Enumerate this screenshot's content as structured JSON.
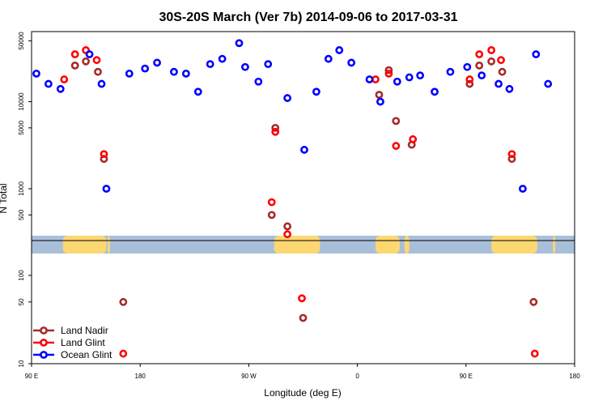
{
  "chart_data": {
    "type": "scatter",
    "title": "30S-20S March (Ver 7b)   2014-09-06 to 2017-03-31",
    "xlabel": "Longitude (deg E)",
    "ylabel": "N Total",
    "xlim": [
      90,
      540
    ],
    "yscale": "log",
    "upper_ylim": [
      200,
      70000
    ],
    "lower_ylim": [
      9,
      150
    ],
    "x_ticks": [
      {
        "value": 90,
        "label": "90 E"
      },
      {
        "value": 180,
        "label": "180"
      },
      {
        "value": 270,
        "label": "90 W"
      },
      {
        "value": 360,
        "label": "0"
      },
      {
        "value": 450,
        "label": "90 E"
      },
      {
        "value": 540,
        "label": "180"
      }
    ],
    "upper_y_ticks": [
      {
        "value": 500,
        "label": "500"
      },
      {
        "value": 1000,
        "label": "1000"
      },
      {
        "value": 5000,
        "label": "5000"
      },
      {
        "value": 10000,
        "label": "10000"
      },
      {
        "value": 50000,
        "label": "50000"
      }
    ],
    "lower_y_ticks": [
      {
        "value": 10,
        "label": "10"
      },
      {
        "value": 50,
        "label": "50"
      },
      {
        "value": 100,
        "label": "100"
      }
    ],
    "map_strip": {
      "ocean_color": "#a8bfd9",
      "land_color": "#fdd872",
      "line_color": "#000000",
      "land_segments": [
        [
          116,
          152
        ],
        [
          153,
          155
        ],
        [
          291,
          329
        ],
        [
          375,
          395
        ],
        [
          399,
          403
        ],
        [
          471,
          509
        ],
        [
          522,
          524
        ]
      ]
    },
    "series": [
      {
        "name": "Land Nadir",
        "color": "#a52a2a",
        "points": [
          [
            126,
            26000
          ],
          [
            135,
            29000
          ],
          [
            145,
            22000
          ],
          [
            150,
            2200
          ],
          [
            166,
            50
          ],
          [
            289,
            500
          ],
          [
            292,
            5000
          ],
          [
            302,
            370
          ],
          [
            315,
            33
          ],
          [
            378,
            12000
          ],
          [
            386,
            23000
          ],
          [
            392,
            6000
          ],
          [
            405,
            3200
          ],
          [
            453,
            16000
          ],
          [
            461,
            26000
          ],
          [
            471,
            29000
          ],
          [
            480,
            22000
          ],
          [
            488,
            2200
          ],
          [
            506,
            50
          ]
        ]
      },
      {
        "name": "Land Glint",
        "color": "#ff0000",
        "points": [
          [
            117,
            18000
          ],
          [
            126,
            35000
          ],
          [
            135,
            39000
          ],
          [
            144,
            30000
          ],
          [
            150,
            2500
          ],
          [
            166,
            13
          ],
          [
            289,
            700
          ],
          [
            292,
            4500
          ],
          [
            302,
            300
          ],
          [
            314,
            55
          ],
          [
            375,
            18000
          ],
          [
            386,
            21000
          ],
          [
            392,
            3100
          ],
          [
            406,
            3700
          ],
          [
            453,
            18000
          ],
          [
            461,
            35000
          ],
          [
            471,
            39000
          ],
          [
            479,
            30000
          ],
          [
            488,
            2500
          ],
          [
            507,
            13
          ]
        ]
      },
      {
        "name": "Ocean Glint",
        "color": "#0000ff",
        "points": [
          [
            94,
            21000
          ],
          [
            104,
            16000
          ],
          [
            114,
            14000
          ],
          [
            138,
            35000
          ],
          [
            148,
            16000
          ],
          [
            152,
            1000
          ],
          [
            171,
            21000
          ],
          [
            184,
            24000
          ],
          [
            194,
            28000
          ],
          [
            208,
            22000
          ],
          [
            218,
            21000
          ],
          [
            228,
            13000
          ],
          [
            238,
            27000
          ],
          [
            248,
            31000
          ],
          [
            262,
            47000
          ],
          [
            267,
            25000
          ],
          [
            278,
            17000
          ],
          [
            286,
            27000
          ],
          [
            302,
            11000
          ],
          [
            316,
            2800
          ],
          [
            326,
            13000
          ],
          [
            336,
            31000
          ],
          [
            345,
            39000
          ],
          [
            355,
            28000
          ],
          [
            370,
            18000
          ],
          [
            379,
            10000
          ],
          [
            393,
            17000
          ],
          [
            403,
            19000
          ],
          [
            412,
            20000
          ],
          [
            424,
            13000
          ],
          [
            437,
            22000
          ],
          [
            451,
            25000
          ],
          [
            463,
            20000
          ],
          [
            477,
            16000
          ],
          [
            486,
            14000
          ],
          [
            497,
            1000
          ],
          [
            508,
            35000
          ],
          [
            518,
            16000
          ]
        ]
      }
    ]
  }
}
